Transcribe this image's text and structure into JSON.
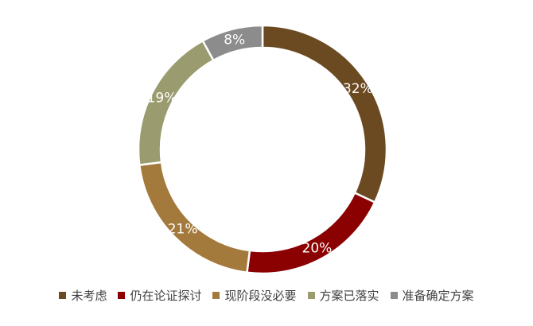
{
  "chart_data": {
    "type": "pie",
    "variant": "donut",
    "title": "",
    "categories": [
      "未考虑",
      "仍在论证探讨",
      "现阶段没必要",
      "方案已落实",
      "准备确定方案"
    ],
    "values": [
      32,
      20,
      21,
      19,
      8
    ],
    "value_labels": [
      "32%",
      "20%",
      "21%",
      "19%",
      "8%"
    ],
    "colors": [
      "#6b4a22",
      "#8b0000",
      "#a47a3c",
      "#9a9b6e",
      "#8c8c8c"
    ],
    "legend_position": "bottom",
    "start": "top",
    "direction": "clockwise"
  }
}
